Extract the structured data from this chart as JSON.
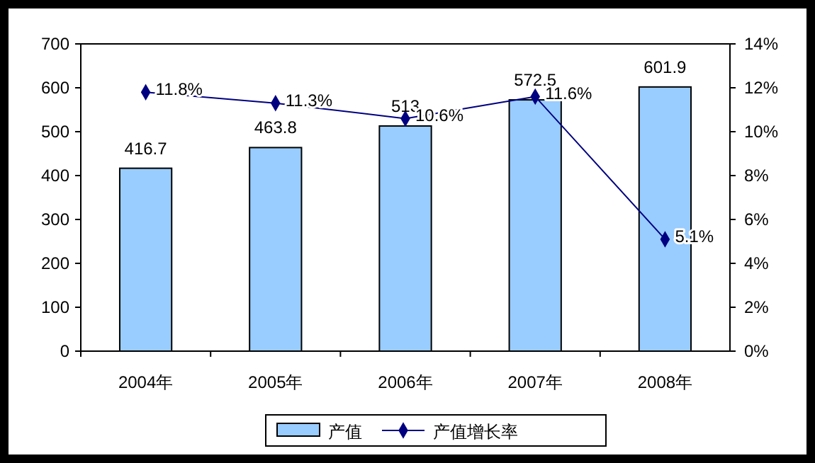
{
  "chart_data": {
    "type": "bar",
    "categories": [
      "2004年",
      "2005年",
      "2006年",
      "2007年",
      "2008年"
    ],
    "series": [
      {
        "name": "产值",
        "color": "#99ccff",
        "values": [
          416.7,
          463.8,
          513,
          572.5,
          601.9
        ],
        "value_labels": [
          "416.7",
          "463.8",
          "513",
          "572.5",
          "601.9"
        ]
      },
      {
        "name": "产值增长率",
        "type": "line",
        "axis": "y2",
        "color": "#000080",
        "marker": "diamond",
        "values": [
          11.8,
          11.3,
          10.6,
          11.6,
          5.1
        ],
        "value_labels": [
          "11.8%",
          "11.3%",
          "10.6%",
          "11.6%",
          "5.1%"
        ]
      }
    ],
    "ylim": [
      0,
      700
    ],
    "yticks": [
      0,
      100,
      200,
      300,
      400,
      500,
      600,
      700
    ],
    "y2lim": [
      0,
      14
    ],
    "y2ticks": [
      {
        "value": 0,
        "label": "0%"
      },
      {
        "value": 2,
        "label": "2%"
      },
      {
        "value": 4,
        "label": "4%"
      },
      {
        "value": 6,
        "label": "6%"
      },
      {
        "value": 8,
        "label": "8%"
      },
      {
        "value": 10,
        "label": "10%"
      },
      {
        "value": 12,
        "label": "12%"
      },
      {
        "value": 14,
        "label": "14%"
      }
    ],
    "grid": false,
    "legend": "bottom"
  }
}
